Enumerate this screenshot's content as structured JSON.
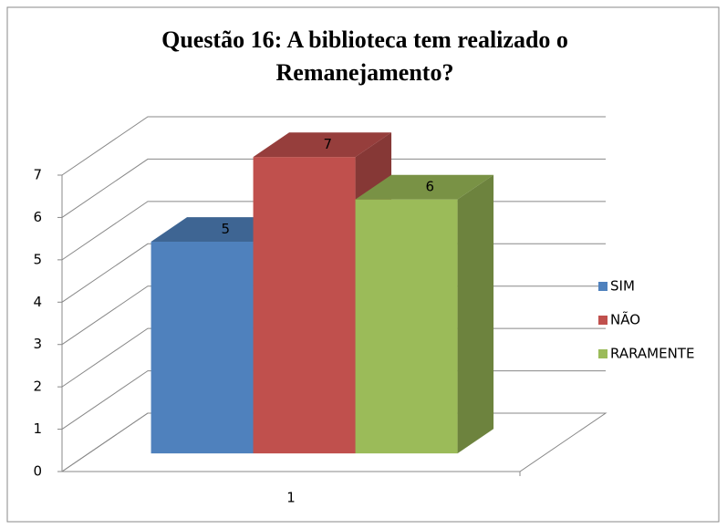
{
  "chart_data": {
    "type": "bar3d",
    "title": "Questão 16: A biblioteca tem realizado  o Remanejamento?",
    "categories": [
      "1"
    ],
    "series": [
      {
        "name": "SIM",
        "color": "#4f81bd",
        "values": [
          5
        ]
      },
      {
        "name": "NÃO",
        "color": "#c0504d",
        "values": [
          7
        ]
      },
      {
        "name": "RARAMENTE",
        "color": "#9bbb59",
        "values": [
          6
        ]
      }
    ],
    "ylim": [
      0,
      7
    ],
    "yticks": [
      0,
      1,
      2,
      3,
      4,
      5,
      6,
      7
    ],
    "grid": true,
    "legend": "right",
    "data_labels": true
  }
}
